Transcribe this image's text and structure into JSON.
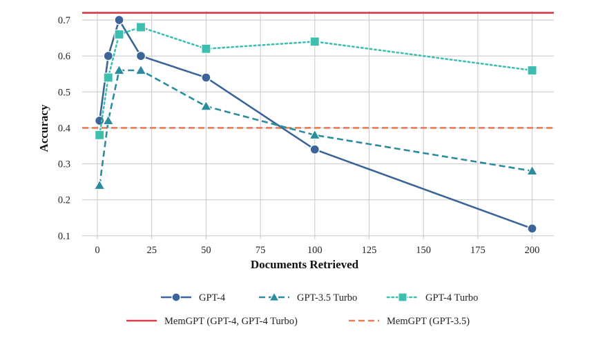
{
  "chart_data": {
    "type": "line",
    "xlabel": "Documents Retrieved",
    "ylabel": "Accuracy",
    "xlim": [
      -7,
      210
    ],
    "ylim": [
      0.09,
      0.725
    ],
    "xticks": [
      0,
      25,
      50,
      75,
      100,
      125,
      150,
      175,
      200
    ],
    "yticks": [
      0.1,
      0.2,
      0.3,
      0.4,
      0.5,
      0.6,
      0.7
    ],
    "grid": true,
    "legend_position": "bottom",
    "series": [
      {
        "name": "GPT-4",
        "color": "#3b6499",
        "marker": "circle",
        "line": "solid",
        "x": [
          1,
          5,
          10,
          20,
          50,
          100,
          200
        ],
        "y": [
          0.42,
          0.6,
          0.7,
          0.6,
          0.54,
          0.34,
          0.12
        ]
      },
      {
        "name": "GPT-3.5 Turbo",
        "color": "#2a8c9e",
        "marker": "triangle",
        "line": "dashed",
        "x": [
          1,
          5,
          10,
          20,
          50,
          100,
          200
        ],
        "y": [
          0.24,
          0.42,
          0.56,
          0.56,
          0.46,
          0.38,
          0.28
        ]
      },
      {
        "name": "GPT-4 Turbo",
        "color": "#3dbfb0",
        "marker": "square",
        "line": "dotted",
        "x": [
          1,
          5,
          10,
          20,
          50,
          100,
          200
        ],
        "y": [
          0.38,
          0.54,
          0.66,
          0.68,
          0.62,
          0.64,
          0.56
        ]
      }
    ],
    "reference_lines": [
      {
        "name": "MemGPT (GPT-4, GPT-4 Turbo)",
        "y": 0.72,
        "color": "#d93a45",
        "line": "solid"
      },
      {
        "name": "MemGPT (GPT-3.5)",
        "y": 0.4,
        "color": "#ee7a4e",
        "line": "dashed"
      }
    ]
  }
}
